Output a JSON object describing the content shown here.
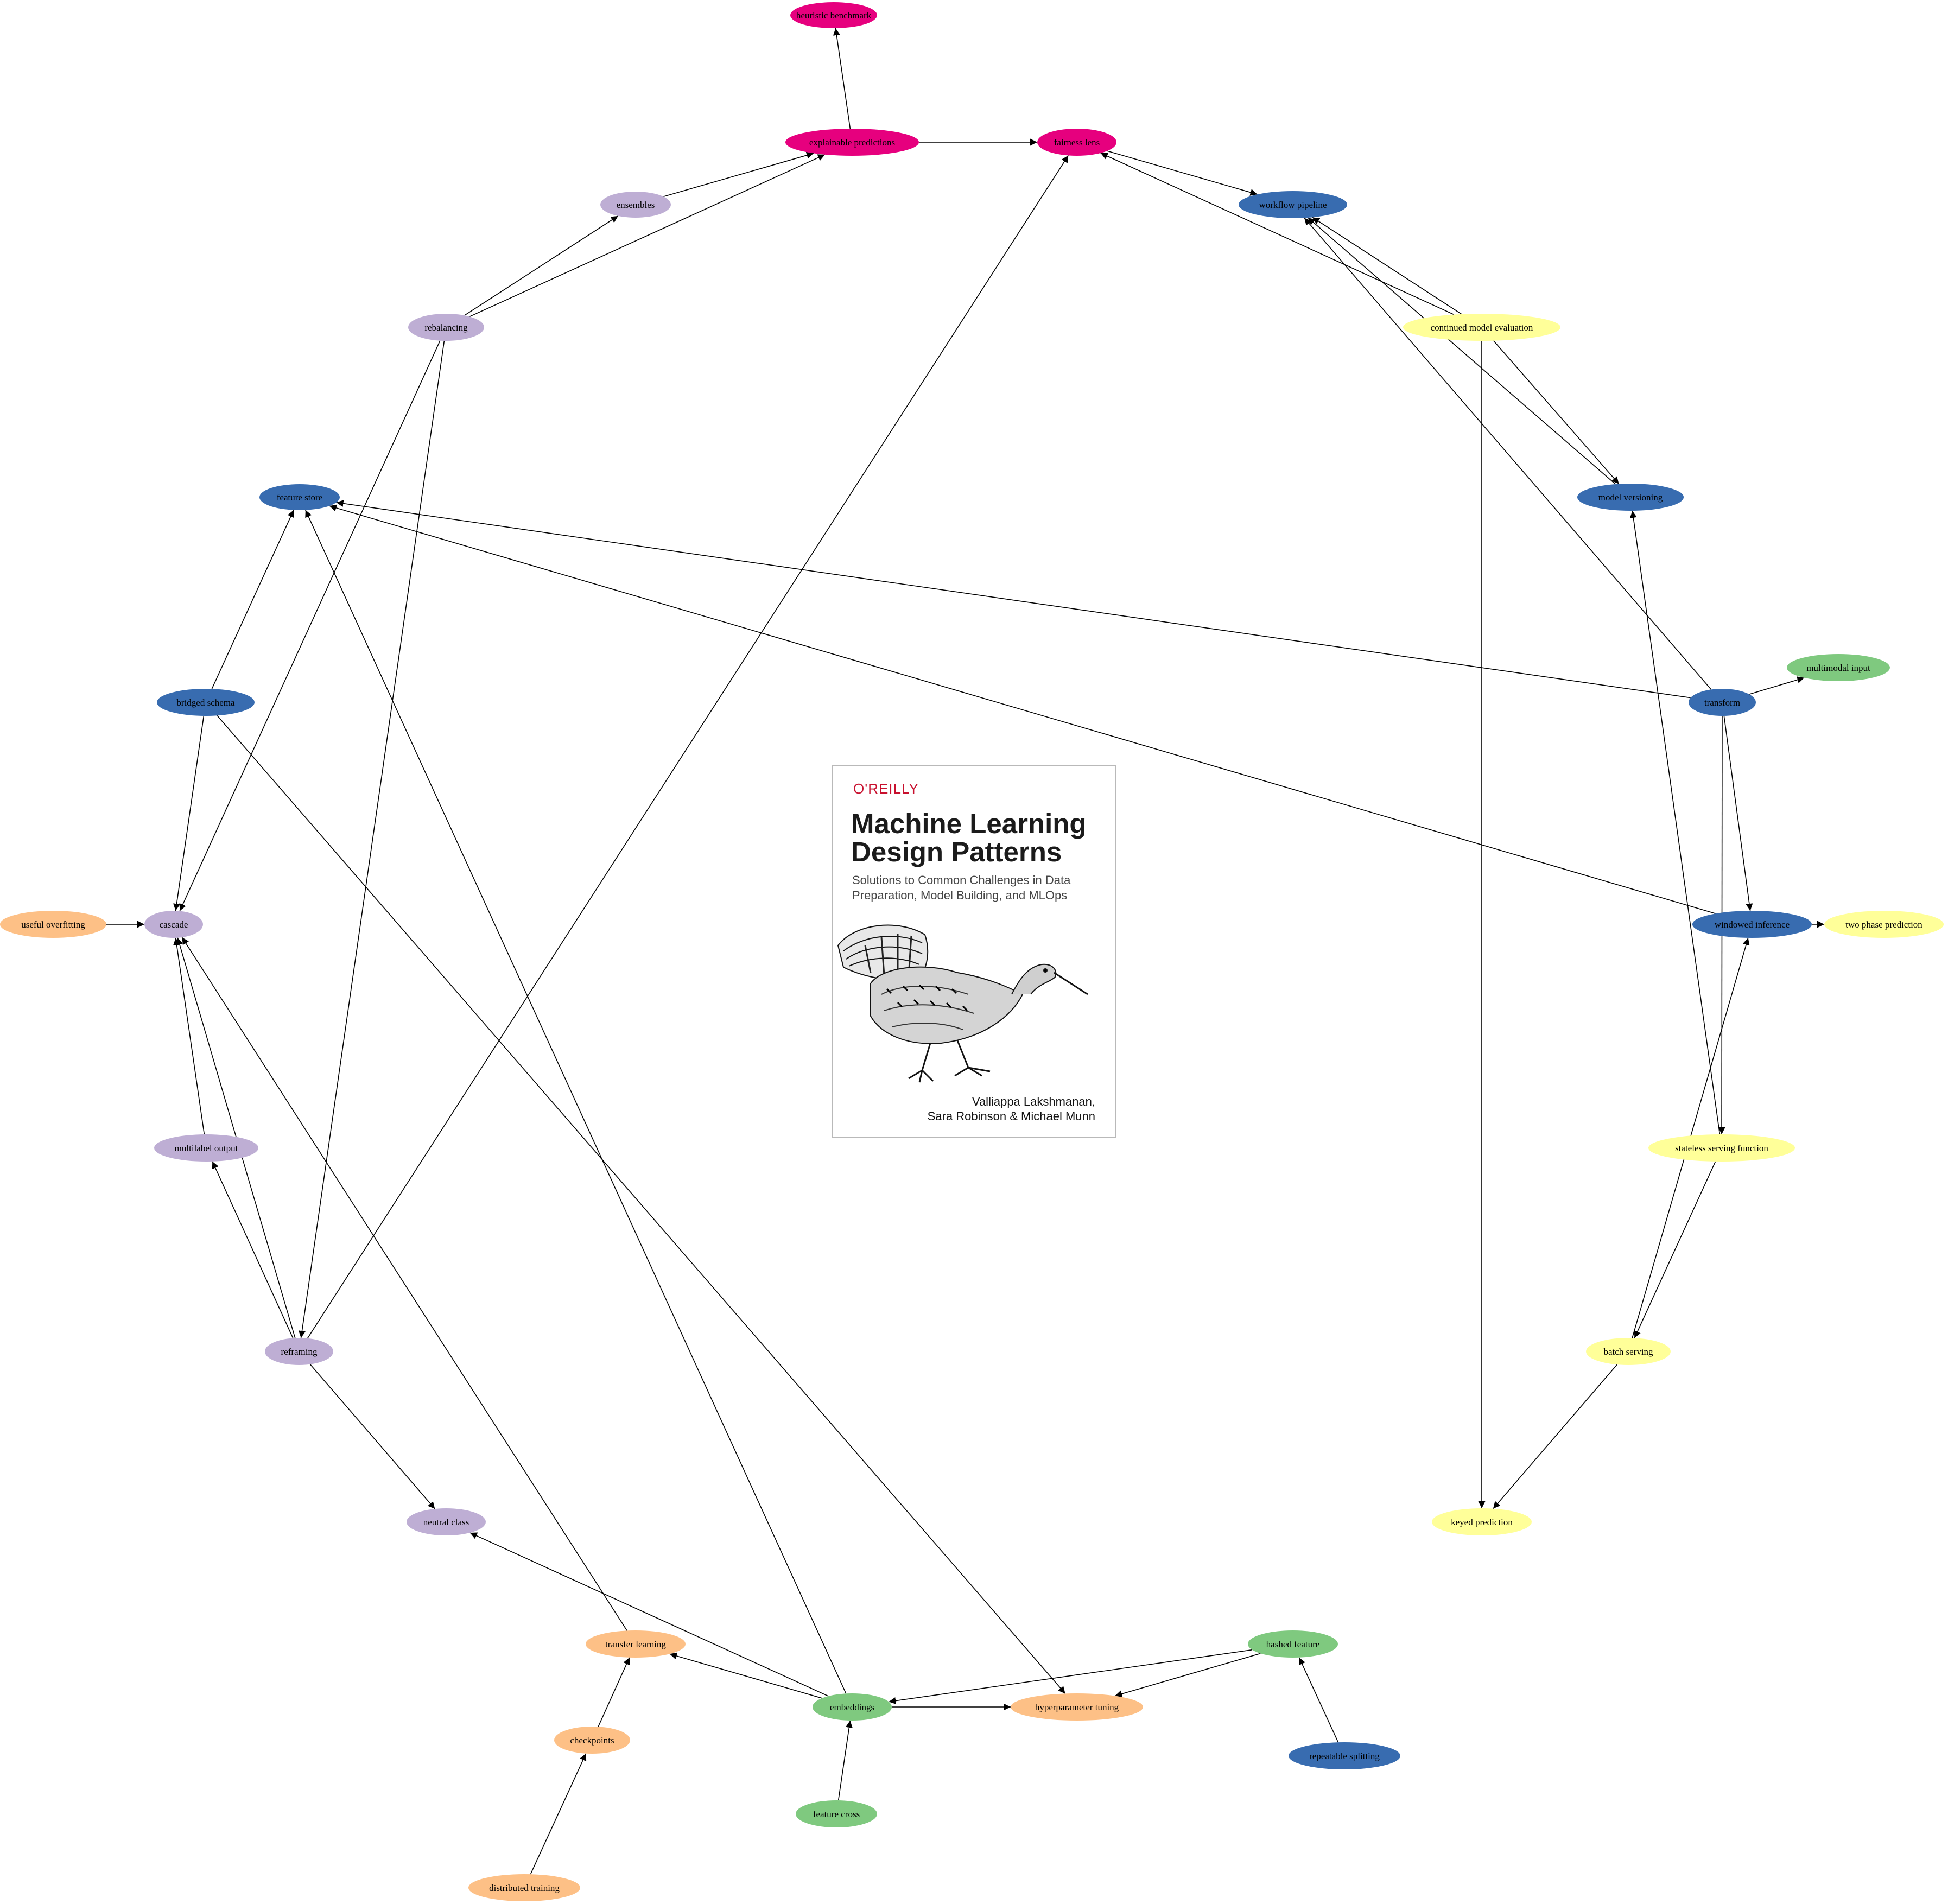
{
  "colors": {
    "pink": "#e6007e",
    "blue": "#386cb0",
    "purple": "#beaed4",
    "orange": "#fdc086",
    "yellow": "#ffff99",
    "green": "#7fc97f"
  },
  "nodes": [
    {
      "id": "heuristic_benchmark",
      "label": "heuristic benchmark",
      "color": "pink"
    },
    {
      "id": "explainable_predictions",
      "label": "explainable predictions",
      "color": "pink"
    },
    {
      "id": "fairness_lens",
      "label": "fairness lens",
      "color": "pink"
    },
    {
      "id": "ensembles",
      "label": "ensembles",
      "color": "purple"
    },
    {
      "id": "workflow_pipeline",
      "label": "workflow pipeline",
      "color": "blue"
    },
    {
      "id": "rebalancing",
      "label": "rebalancing",
      "color": "purple"
    },
    {
      "id": "continued_model_evaluation",
      "label": "continued model evaluation",
      "color": "yellow"
    },
    {
      "id": "feature_store",
      "label": "feature store",
      "color": "blue"
    },
    {
      "id": "model_versioning",
      "label": "model versioning",
      "color": "blue"
    },
    {
      "id": "multimodal_input",
      "label": "multimodal input",
      "color": "green"
    },
    {
      "id": "bridged_schema",
      "label": "bridged schema",
      "color": "blue"
    },
    {
      "id": "transform",
      "label": "transform",
      "color": "blue"
    },
    {
      "id": "useful_overfitting",
      "label": "useful overfitting",
      "color": "orange"
    },
    {
      "id": "cascade",
      "label": "cascade",
      "color": "purple"
    },
    {
      "id": "windowed_inference",
      "label": "windowed inference",
      "color": "blue"
    },
    {
      "id": "two_phase_prediction",
      "label": "two phase prediction",
      "color": "yellow"
    },
    {
      "id": "multilabel_output",
      "label": "multilabel output",
      "color": "purple"
    },
    {
      "id": "stateless_serving_function",
      "label": "stateless serving function",
      "color": "yellow"
    },
    {
      "id": "reframing",
      "label": "reframing",
      "color": "purple"
    },
    {
      "id": "batch_serving",
      "label": "batch serving",
      "color": "yellow"
    },
    {
      "id": "neutral_class",
      "label": "neutral class",
      "color": "purple"
    },
    {
      "id": "keyed_prediction",
      "label": "keyed prediction",
      "color": "yellow"
    },
    {
      "id": "transfer_learning",
      "label": "transfer learning",
      "color": "orange"
    },
    {
      "id": "hashed_feature",
      "label": "hashed feature",
      "color": "green"
    },
    {
      "id": "embeddings",
      "label": "embeddings",
      "color": "green"
    },
    {
      "id": "hyperparameter_tuning",
      "label": "hyperparameter tuning",
      "color": "orange"
    },
    {
      "id": "checkpoints",
      "label": "checkpoints",
      "color": "orange"
    },
    {
      "id": "repeatable_splitting",
      "label": "repeatable splitting",
      "color": "blue"
    },
    {
      "id": "feature_cross",
      "label": "feature cross",
      "color": "green"
    },
    {
      "id": "distributed_training",
      "label": "distributed training",
      "color": "orange"
    }
  ],
  "edges": [
    [
      "explainable_predictions",
      "heuristic_benchmark"
    ],
    [
      "explainable_predictions",
      "fairness_lens"
    ],
    [
      "ensembles",
      "explainable_predictions"
    ],
    [
      "rebalancing",
      "explainable_predictions"
    ],
    [
      "rebalancing",
      "ensembles"
    ],
    [
      "rebalancing",
      "cascade"
    ],
    [
      "rebalancing",
      "reframing"
    ],
    [
      "fairness_lens",
      "workflow_pipeline"
    ],
    [
      "continued_model_evaluation",
      "fairness_lens"
    ],
    [
      "continued_model_evaluation",
      "workflow_pipeline"
    ],
    [
      "continued_model_evaluation",
      "model_versioning"
    ],
    [
      "continued_model_evaluation",
      "keyed_prediction"
    ],
    [
      "model_versioning",
      "workflow_pipeline"
    ],
    [
      "transform",
      "workflow_pipeline"
    ],
    [
      "transform",
      "feature_store"
    ],
    [
      "transform",
      "multimodal_input"
    ],
    [
      "transform",
      "windowed_inference"
    ],
    [
      "transform",
      "stateless_serving_function"
    ],
    [
      "windowed_inference",
      "feature_store"
    ],
    [
      "windowed_inference",
      "two_phase_prediction"
    ],
    [
      "stateless_serving_function",
      "model_versioning"
    ],
    [
      "stateless_serving_function",
      "batch_serving"
    ],
    [
      "batch_serving",
      "windowed_inference"
    ],
    [
      "batch_serving",
      "keyed_prediction"
    ],
    [
      "bridged_schema",
      "feature_store"
    ],
    [
      "bridged_schema",
      "cascade"
    ],
    [
      "bridged_schema",
      "hyperparameter_tuning"
    ],
    [
      "useful_overfitting",
      "cascade"
    ],
    [
      "multilabel_output",
      "cascade"
    ],
    [
      "reframing",
      "cascade"
    ],
    [
      "reframing",
      "multilabel_output"
    ],
    [
      "reframing",
      "fairness_lens"
    ],
    [
      "reframing",
      "neutral_class"
    ],
    [
      "transfer_learning",
      "cascade"
    ],
    [
      "embeddings",
      "feature_store"
    ],
    [
      "embeddings",
      "neutral_class"
    ],
    [
      "embeddings",
      "transfer_learning"
    ],
    [
      "embeddings",
      "hyperparameter_tuning"
    ],
    [
      "hashed_feature",
      "embeddings"
    ],
    [
      "hashed_feature",
      "hyperparameter_tuning"
    ],
    [
      "repeatable_splitting",
      "hashed_feature"
    ],
    [
      "checkpoints",
      "transfer_learning"
    ],
    [
      "distributed_training",
      "checkpoints"
    ],
    [
      "feature_cross",
      "embeddings"
    ]
  ],
  "cover": {
    "publisher": "O'REILLY",
    "title_line1": "Machine Learning",
    "title_line2": "Design Patterns",
    "subtitle_line1": "Solutions to Common Challenges in Data",
    "subtitle_line2": "Preparation, Model Building, and MLOps",
    "authors_line1": "Valliappa Lakshmanan,",
    "authors_line2": "Sara Robinson & Michael Munn"
  }
}
